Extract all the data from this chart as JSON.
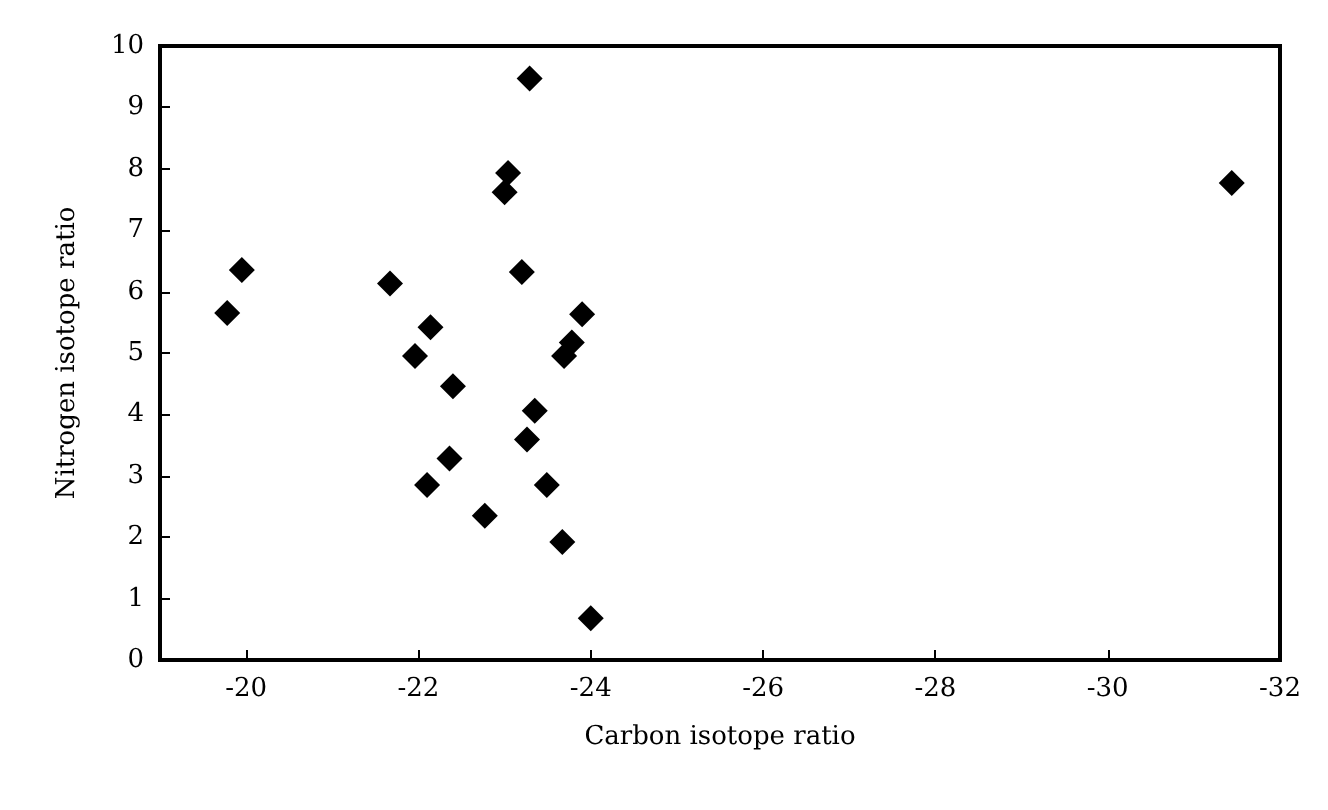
{
  "chart_data": {
    "type": "scatter",
    "xlabel": "Carbon isotope ratio",
    "ylabel": "Nitrogen isotope ratio",
    "xlim": [
      -19,
      -32
    ],
    "xticks": [
      -20,
      -22,
      -24,
      -26,
      -28,
      -30,
      -32
    ],
    "ylim": [
      0,
      10
    ],
    "yticks": [
      0,
      1,
      2,
      3,
      4,
      5,
      6,
      7,
      8,
      9,
      10
    ],
    "grid": false,
    "marker": "diamond",
    "series": [
      {
        "color": "#000000",
        "x": [
          -19.78,
          -19.95,
          -21.67,
          -22.14,
          -21.96,
          -22.4,
          -22.36,
          -22.1,
          -22.77,
          -23.04,
          -23.0,
          -23.29,
          -23.2,
          -23.9,
          -23.78,
          -23.69,
          -23.35,
          -23.26,
          -23.49,
          -23.67,
          -24.0,
          -31.44
        ],
        "values": [
          5.65,
          6.35,
          6.13,
          5.42,
          4.95,
          4.46,
          3.28,
          2.85,
          2.35,
          7.93,
          7.62,
          9.47,
          6.32,
          5.63,
          5.17,
          4.95,
          4.06,
          3.59,
          2.85,
          1.92,
          0.68,
          7.77
        ]
      }
    ]
  }
}
